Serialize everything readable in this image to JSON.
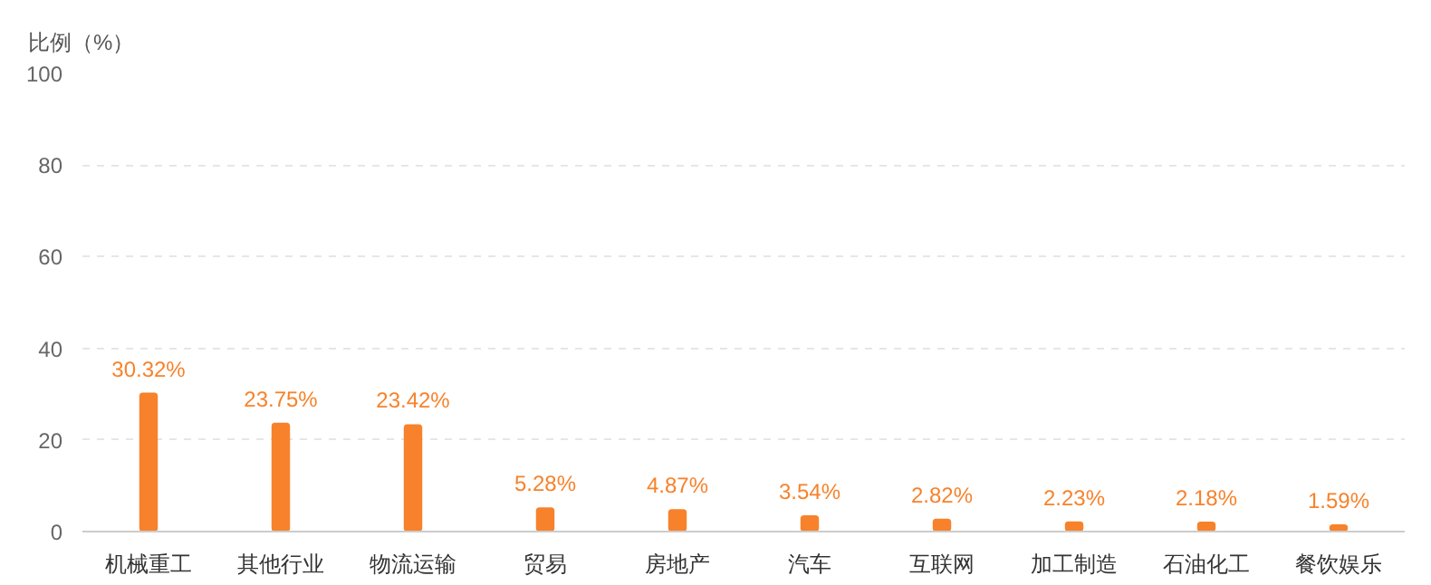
{
  "chart_data": {
    "type": "bar",
    "ylabel": "比例（%）",
    "categories": [
      "机械重工",
      "其他行业",
      "物流运输",
      "贸易",
      "房地产",
      "汽车",
      "互联网",
      "加工制造",
      "石油化工",
      "餐饮娱乐"
    ],
    "values": [
      30.32,
      23.75,
      23.42,
      5.28,
      4.87,
      3.54,
      2.82,
      2.23,
      2.18,
      1.59
    ],
    "value_labels": [
      "30.32%",
      "23.75%",
      "23.42%",
      "5.28%",
      "4.87%",
      "3.54%",
      "2.82%",
      "2.23%",
      "2.18%",
      "1.59%"
    ],
    "color": "#f7822b",
    "ylim": [
      0,
      100
    ],
    "yticks": [
      0,
      20,
      40,
      60,
      80,
      100
    ],
    "grid": "y"
  }
}
